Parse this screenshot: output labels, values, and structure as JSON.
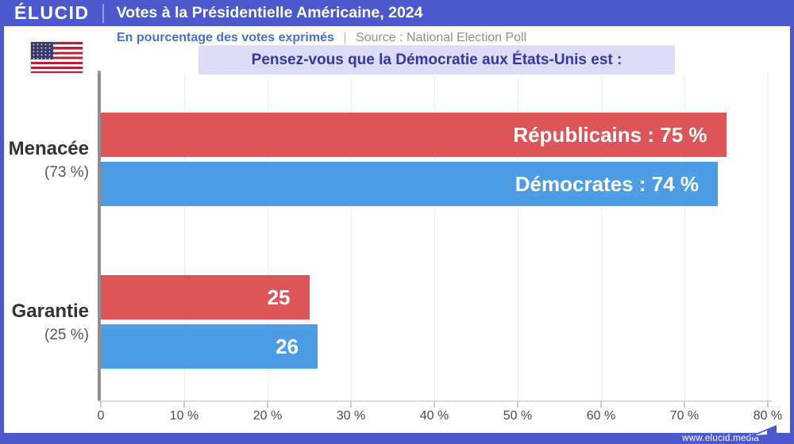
{
  "header": {
    "logo_text": "ÉLUCID",
    "title": "Votes à la Présidentielle Américaine, 2024"
  },
  "subtitle": {
    "measure": "En pourcentage des votes exprimés",
    "separator": "|",
    "source": "Source : National Election Poll"
  },
  "question_banner": "Pensez-vous que la Démocratie aux États-Unis est :",
  "footer": {
    "website": "www.elucid.media"
  },
  "colors": {
    "brand_blue": "#4b59cd",
    "republican_red": "#dd5459",
    "democrat_blue": "#4d9de4",
    "banner_bg": "#dddcf6",
    "banner_text": "#3636a0",
    "subtitle_blue": "#4a70cf",
    "source_gray": "#8f8f8f"
  },
  "chart_data": {
    "type": "bar",
    "orientation": "horizontal",
    "title": "Pensez-vous que la Démocratie aux États-Unis est :",
    "categories": [
      "Menacée",
      "Garantie"
    ],
    "category_sublabels": [
      "(73 %)",
      "(25 %)"
    ],
    "series": [
      {
        "name": "Républicains",
        "color": "#dd5459",
        "values": [
          75,
          25
        ]
      },
      {
        "name": "Démocrates",
        "color": "#4d9de4",
        "values": [
          74,
          26
        ]
      }
    ],
    "bar_value_labels": {
      "menacee_republicains": "Républicains : 75 %",
      "menacee_democrates": "Démocrates : 74 %",
      "garantie_republicains": "25",
      "garantie_democrates": "26"
    },
    "x_ticks": [
      "0",
      "10 %",
      "20 %",
      "30 %",
      "40 %",
      "50 %",
      "60 %",
      "70 %",
      "80 %"
    ],
    "xlim": [
      0,
      80
    ],
    "grid": "vertical-light",
    "legend": "labels-inside-bars"
  }
}
